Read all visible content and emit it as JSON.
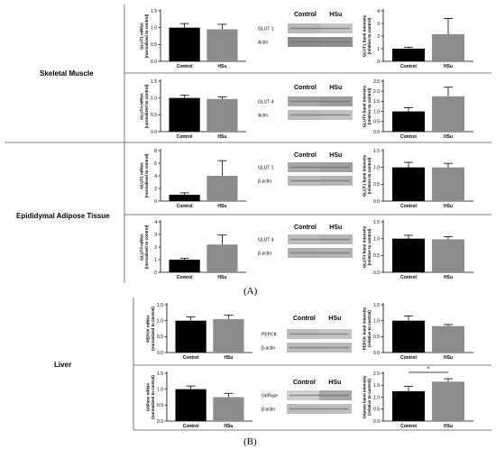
{
  "tissues": {
    "skeletal_muscle": "Skeletal Muscle",
    "adipose": "Epididymal Adipose Tissue",
    "liver": "Liver"
  },
  "panel_labels": [
    "(A)",
    "(B)"
  ],
  "blot_headers": {
    "control": "Control",
    "hsu": "HSu"
  },
  "significance_mark": "*",
  "colors": {
    "control_bar": "#000000",
    "hsu_bar": "#8c8c8c",
    "axis": "#000000"
  },
  "chart_data": [
    {
      "id": "sm_glut1_mrna",
      "type": "bar",
      "ylabel": "GLUT1 mRNA (normalized to control)",
      "ylim": [
        0,
        1.5
      ],
      "yticks": [
        "0.0",
        "0.5",
        "1.0",
        "1.5"
      ],
      "categories": [
        "Control",
        "HSu"
      ],
      "values": [
        1.0,
        0.95
      ],
      "errors": [
        0.12,
        0.15
      ]
    },
    {
      "id": "sm_glut1_band",
      "type": "bar",
      "ylabel": "GLUT1 band intensity (relative to control)",
      "ylim": [
        0,
        4
      ],
      "yticks": [
        "0",
        "1",
        "2",
        "3",
        "4"
      ],
      "categories": [
        "Control",
        "HSu"
      ],
      "values": [
        1.0,
        2.15
      ],
      "errors": [
        0.12,
        1.25
      ]
    },
    {
      "id": "sm_glut4_mrna",
      "type": "bar",
      "ylabel": "GLUT4 mRNA (normalized to control)",
      "ylim": [
        0,
        1.5
      ],
      "yticks": [
        "0.0",
        "0.5",
        "1.0",
        "1.5"
      ],
      "categories": [
        "Control",
        "HSu"
      ],
      "values": [
        1.0,
        0.97
      ],
      "errors": [
        0.08,
        0.06
      ]
    },
    {
      "id": "sm_glut4_band",
      "type": "bar",
      "ylabel": "GLUT4 band intensity (relative to control)",
      "ylim": [
        0,
        2.5
      ],
      "yticks": [
        "0.0",
        "0.5",
        "1.0",
        "1.5",
        "2.0",
        "2.5"
      ],
      "categories": [
        "Control",
        "HSu"
      ],
      "values": [
        1.0,
        1.75
      ],
      "errors": [
        0.18,
        0.45
      ]
    },
    {
      "id": "at_glut1_mrna",
      "type": "bar",
      "ylabel": "GLUT1 mRNA (normalized to control)",
      "ylim": [
        0,
        8
      ],
      "yticks": [
        "0",
        "2",
        "4",
        "6",
        "8"
      ],
      "categories": [
        "Control",
        "HSu"
      ],
      "values": [
        1.0,
        4.0
      ],
      "errors": [
        0.3,
        2.4
      ]
    },
    {
      "id": "at_glut1_band",
      "type": "bar",
      "ylabel": "GLUT1 band intensity (relative to control)",
      "ylim": [
        0,
        1.5
      ],
      "yticks": [
        "0.0",
        "0.5",
        "1.0",
        "1.5"
      ],
      "categories": [
        "Control",
        "HSu"
      ],
      "values": [
        1.0,
        1.0
      ],
      "errors": [
        0.15,
        0.12
      ]
    },
    {
      "id": "at_glut4_mrna",
      "type": "bar",
      "ylabel": "GLUT4 mRNA (normalized to control)",
      "ylim": [
        0,
        4
      ],
      "yticks": [
        "0",
        "1",
        "2",
        "3",
        "4"
      ],
      "categories": [
        "Control",
        "HSu"
      ],
      "values": [
        1.0,
        2.2
      ],
      "errors": [
        0.1,
        0.75
      ]
    },
    {
      "id": "at_glut4_band",
      "type": "bar",
      "ylabel": "GLUT4 band intensity (relative to control)",
      "ylim": [
        0,
        1.5
      ],
      "yticks": [
        "0.0",
        "0.5",
        "1.0",
        "1.5"
      ],
      "categories": [
        "Control",
        "HSu"
      ],
      "values": [
        1.0,
        0.98
      ],
      "errors": [
        0.1,
        0.08
      ]
    },
    {
      "id": "lv_pepck_mrna",
      "type": "bar",
      "ylabel": "PEPCK mRNA (normalized to control)",
      "ylim": [
        0,
        1.5
      ],
      "yticks": [
        "0.0",
        "0.5",
        "1.0",
        "1.5"
      ],
      "categories": [
        "Control",
        "HSu"
      ],
      "values": [
        1.0,
        1.05
      ],
      "errors": [
        0.12,
        0.12
      ]
    },
    {
      "id": "lv_pepck_band",
      "type": "bar",
      "ylabel": "PEPCK band intensity (relative to control)",
      "ylim": [
        0,
        1.5
      ],
      "yticks": [
        "0.0",
        "0.5",
        "1.0",
        "1.5"
      ],
      "categories": [
        "Control",
        "HSu"
      ],
      "values": [
        1.0,
        0.83
      ],
      "errors": [
        0.15,
        0.05
      ]
    },
    {
      "id": "lv_g6pase_mrna",
      "type": "bar",
      "ylabel": "G6Pase mRNA (normalized to control)",
      "ylim": [
        0,
        1.5
      ],
      "yticks": [
        "0.0",
        "0.5",
        "1.0",
        "1.5"
      ],
      "categories": [
        "Control",
        "HSu"
      ],
      "values": [
        1.0,
        0.75
      ],
      "errors": [
        0.1,
        0.12
      ]
    },
    {
      "id": "lv_g6pase_band",
      "type": "bar",
      "ylabel": "G6pase band intensity (relative to control)",
      "ylim": [
        0,
        2.0
      ],
      "yticks": [
        "0.0",
        "0.5",
        "1.0",
        "1.5",
        "2.0"
      ],
      "categories": [
        "Control",
        "HSu"
      ],
      "values": [
        1.25,
        1.65
      ],
      "errors": [
        0.2,
        0.12
      ],
      "significance": "*"
    }
  ],
  "blots": [
    {
      "id": "sm_glut1_blot",
      "rows": [
        "GLUT 1",
        "Actin"
      ]
    },
    {
      "id": "sm_glut4_blot",
      "rows": [
        "GLUT 4",
        "Actin"
      ]
    },
    {
      "id": "at_glut1_blot",
      "rows": [
        "GLUT 1",
        "β-actin"
      ]
    },
    {
      "id": "at_glut4_blot",
      "rows": [
        "GLUT 4",
        "β-actin"
      ]
    },
    {
      "id": "lv_pepck_blot",
      "rows": [
        "PEPCK",
        "β-actin"
      ]
    },
    {
      "id": "lv_g6pase_blot",
      "rows": [
        "G6Pase",
        "β-actin"
      ]
    }
  ]
}
